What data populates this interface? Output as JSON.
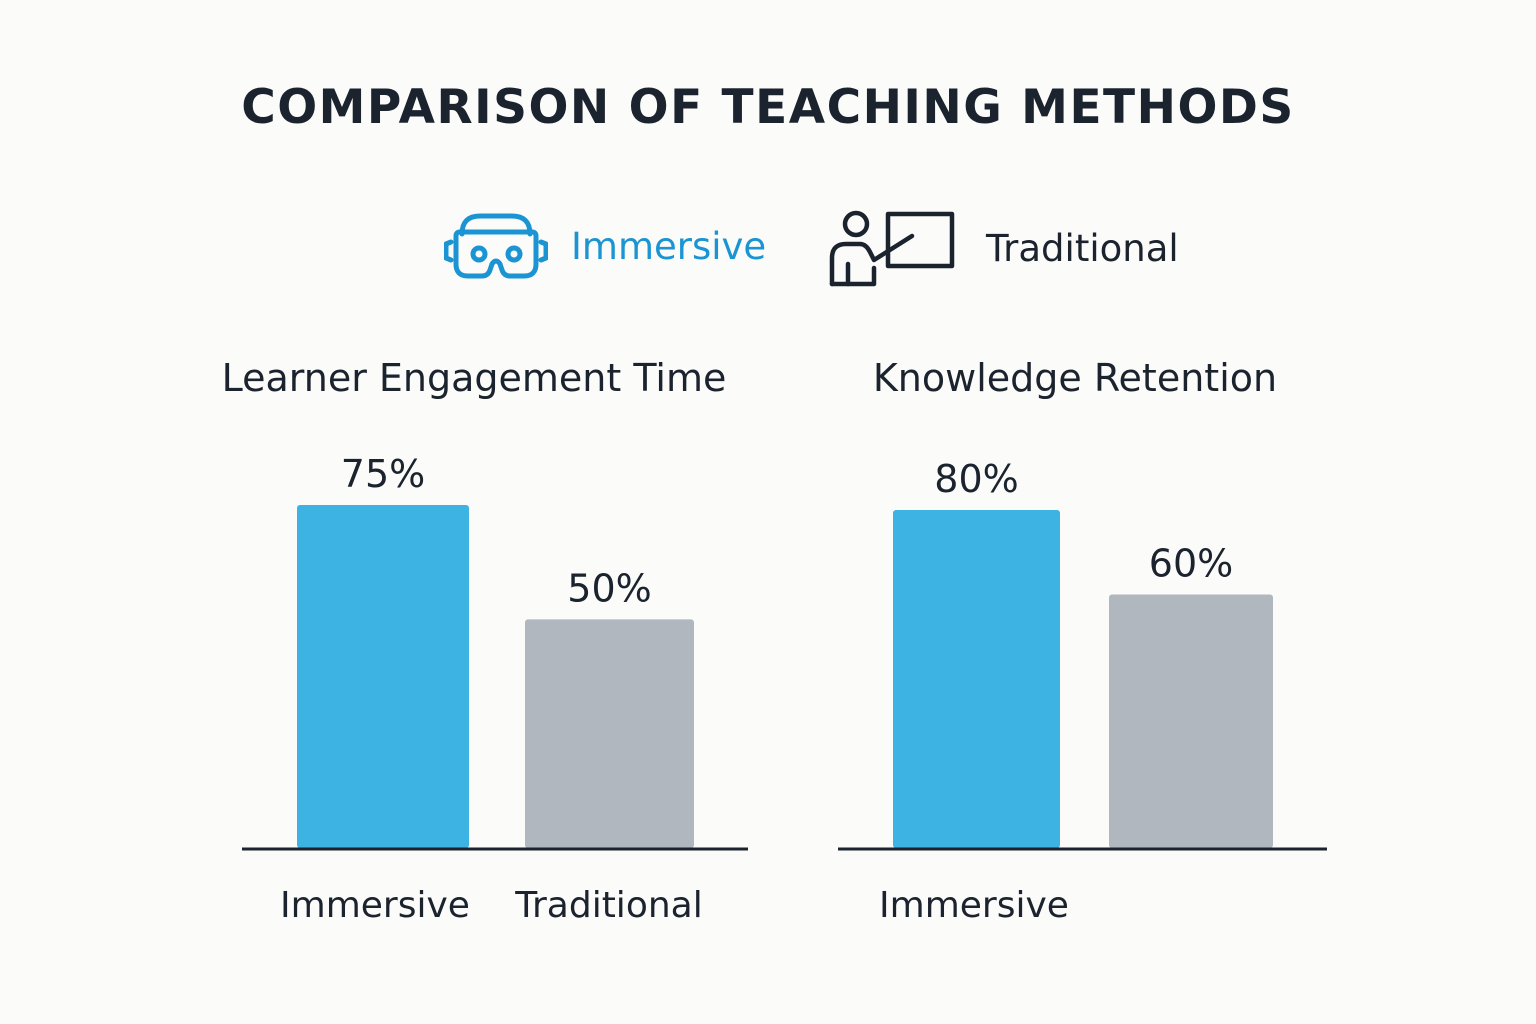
{
  "title": "COMPARISON OF TEACHING METHODS",
  "legend": [
    {
      "label": "Immersive",
      "color": "#1a94d2",
      "icon": "vr-headset-icon"
    },
    {
      "label": "Traditional",
      "color": "#1b232e",
      "icon": "teacher-board-icon"
    }
  ],
  "colors": {
    "immersive_bar": "#3db3e3",
    "traditional_bar": "#b1b7bf",
    "text": "#1b232e",
    "axis": "#1b232e"
  },
  "chart_data": [
    {
      "type": "bar",
      "title": "Learner Engagement Time",
      "categories": [
        "Immersive",
        "Traditional"
      ],
      "values": [
        75,
        50
      ],
      "value_labels": [
        "75%",
        "50%"
      ],
      "category_labels": [
        "Immersive",
        "Traditional"
      ],
      "unit": "%"
    },
    {
      "type": "bar",
      "title": "Knowledge Retention",
      "categories": [
        "Immersive",
        "Traditional"
      ],
      "values": [
        80,
        60
      ],
      "value_labels": [
        "80%",
        "60%"
      ],
      "category_labels": [
        "Immersive",
        ""
      ],
      "unit": "%"
    }
  ]
}
